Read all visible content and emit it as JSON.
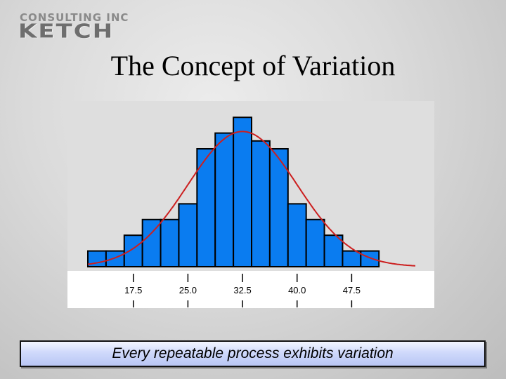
{
  "logo": {
    "top_text": "CONSULTING INC",
    "main_text": "KETCH"
  },
  "slide": {
    "title": "The Concept of Variation",
    "caption": "Every repeatable process exhibits variation"
  },
  "colors": {
    "bar_fill": "#0a7cf0",
    "bar_edge": "#000000",
    "curve": "#cc1f1f",
    "plot_bg": "#dedede"
  },
  "chart_data": {
    "type": "bar",
    "title": "",
    "xlabel": "",
    "ylabel": "",
    "bin_width": 2.5,
    "xlim": [
      11.25,
      56.25
    ],
    "ylim": [
      0,
      20
    ],
    "bins": [
      {
        "center": 12.5,
        "count": 2
      },
      {
        "center": 15.0,
        "count": 2
      },
      {
        "center": 17.5,
        "count": 4
      },
      {
        "center": 20.0,
        "count": 6
      },
      {
        "center": 22.5,
        "count": 6
      },
      {
        "center": 25.0,
        "count": 8
      },
      {
        "center": 27.5,
        "count": 15
      },
      {
        "center": 30.0,
        "count": 17
      },
      {
        "center": 32.5,
        "count": 19
      },
      {
        "center": 35.0,
        "count": 16
      },
      {
        "center": 37.5,
        "count": 15
      },
      {
        "center": 40.0,
        "count": 8
      },
      {
        "center": 42.5,
        "count": 6
      },
      {
        "center": 45.0,
        "count": 4
      },
      {
        "center": 47.5,
        "count": 2
      },
      {
        "center": 50.0,
        "count": 2
      }
    ],
    "tick_labels": [
      "17.5",
      "25.0",
      "32.5",
      "40.0",
      "47.5"
    ],
    "tick_values": [
      17.5,
      25.0,
      32.5,
      40.0,
      47.5
    ],
    "fit_curve": {
      "type": "normal",
      "mean": 32.5,
      "sd": 7.5,
      "peak": 17.2
    },
    "grid": false,
    "legend": "none"
  }
}
